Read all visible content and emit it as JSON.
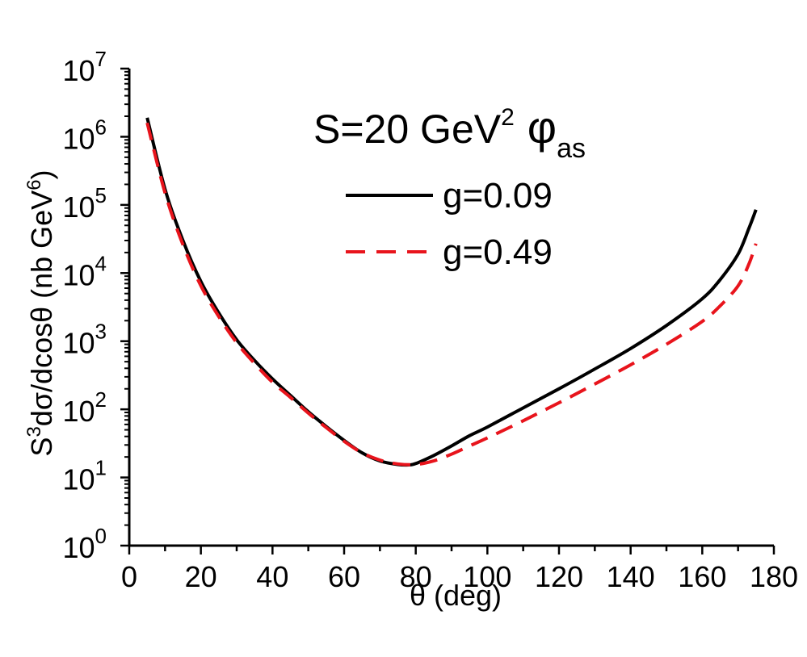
{
  "chart_data": {
    "type": "line",
    "title": "",
    "annotation": {
      "prefix": "S=20 GeV",
      "prefix_sup": "2",
      "symbol": "φ",
      "symbol_sub": "as"
    },
    "xlabel": "θ (deg)",
    "ylabel": {
      "a": "S",
      "a_sup": "3",
      "b": "dσ/dcosθ (nb GeV",
      "b_sup": "6",
      "c": ")"
    },
    "xlim": [
      0,
      180
    ],
    "ylim": [
      1,
      10000000
    ],
    "yscale": "log",
    "grid": false,
    "legend_position": "upper-right",
    "x_ticks": [
      {
        "value": 0,
        "label": "0"
      },
      {
        "value": 20,
        "label": "20"
      },
      {
        "value": 40,
        "label": "40"
      },
      {
        "value": 60,
        "label": "60"
      },
      {
        "value": 80,
        "label": "80"
      },
      {
        "value": 100,
        "label": "100"
      },
      {
        "value": 120,
        "label": "120"
      },
      {
        "value": 140,
        "label": "140"
      },
      {
        "value": 160,
        "label": "160"
      },
      {
        "value": 180,
        "label": "180"
      }
    ],
    "y_ticks": [
      {
        "value": 1,
        "base": "10",
        "exp": "0"
      },
      {
        "value": 10,
        "base": "10",
        "exp": "1"
      },
      {
        "value": 100,
        "base": "10",
        "exp": "2"
      },
      {
        "value": 1000,
        "base": "10",
        "exp": "3"
      },
      {
        "value": 10000,
        "base": "10",
        "exp": "4"
      },
      {
        "value": 100000,
        "base": "10",
        "exp": "5"
      },
      {
        "value": 1000000,
        "base": "10",
        "exp": "6"
      },
      {
        "value": 10000000,
        "base": "10",
        "exp": "7"
      }
    ],
    "series": [
      {
        "name": "g=0.09",
        "color": "#000000",
        "style": "solid",
        "x": [
          5,
          10,
          15,
          20,
          25,
          30,
          35,
          40,
          45,
          50,
          55,
          60,
          65,
          70,
          75,
          78,
          80,
          85,
          90,
          95,
          100,
          110,
          120,
          130,
          140,
          150,
          160,
          165,
          170,
          173,
          175
        ],
        "y": [
          1900000,
          170000,
          30000,
          7500,
          2600,
          1050,
          520,
          280,
          160,
          92,
          56,
          35,
          23,
          17.5,
          15.5,
          15.3,
          16,
          21,
          29,
          41,
          55,
          105,
          200,
          390,
          780,
          1700,
          4200,
          8000,
          19000,
          45000,
          85000
        ]
      },
      {
        "name": "g=0.49",
        "color": "#e8141c",
        "style": "dashed",
        "x": [
          5,
          10,
          15,
          20,
          25,
          30,
          35,
          40,
          45,
          50,
          55,
          60,
          65,
          70,
          75,
          80,
          85,
          90,
          95,
          100,
          110,
          120,
          130,
          140,
          150,
          160,
          165,
          170,
          173,
          175
        ],
        "y": [
          1600000,
          150000,
          26000,
          6500,
          2300,
          950,
          470,
          250,
          150,
          88,
          54,
          34,
          23,
          18,
          15.8,
          15.5,
          17.5,
          22,
          29,
          38,
          68,
          125,
          235,
          450,
          900,
          1950,
          3300,
          6500,
          13500,
          27000
        ]
      }
    ]
  }
}
